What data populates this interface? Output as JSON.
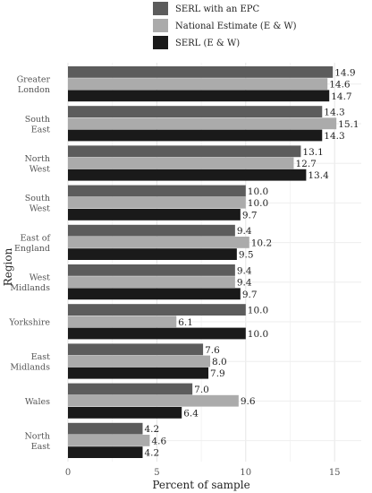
{
  "chart_data": {
    "type": "bar",
    "orientation": "horizontal",
    "xlabel": "Percent of sample",
    "ylabel": "Region",
    "xlim": [
      0,
      16.5
    ],
    "xticks": [
      0,
      5,
      10,
      15
    ],
    "grid": true,
    "legend_position": "top",
    "categories": [
      [
        "Greater",
        "London"
      ],
      [
        "South",
        "East"
      ],
      [
        "North",
        "West"
      ],
      [
        "South",
        "West"
      ],
      [
        "East of",
        "England"
      ],
      [
        "West",
        "Midlands"
      ],
      [
        "Yorkshire"
      ],
      [
        "East",
        "Midlands"
      ],
      [
        "Wales"
      ],
      [
        "North",
        "East"
      ]
    ],
    "series": [
      {
        "name": "SERL with an EPC",
        "color": "#5c5c5c",
        "values": [
          14.9,
          14.3,
          13.1,
          10.0,
          9.4,
          9.4,
          10.0,
          7.6,
          7.0,
          4.2
        ],
        "labels": [
          "14.9",
          "14.3",
          "13.1",
          "10.0",
          "9.4",
          "9.4",
          "10.0",
          "7.6",
          "7.0",
          "4.2"
        ]
      },
      {
        "name": "National Estimate (E & W)",
        "color": "#ababab",
        "values": [
          14.6,
          15.1,
          12.7,
          10.0,
          10.2,
          9.4,
          6.1,
          8.0,
          9.6,
          4.6
        ],
        "labels": [
          "14.6",
          "15.1",
          "12.7",
          "10.0",
          "10.2",
          "9.4",
          "6.1",
          "8.0",
          "9.6",
          "4.6"
        ]
      },
      {
        "name": "SERL (E & W)",
        "color": "#1a1a1a",
        "values": [
          14.7,
          14.3,
          13.4,
          9.7,
          9.5,
          9.7,
          10.0,
          7.9,
          6.4,
          4.2
        ],
        "labels": [
          "14.7",
          "14.3",
          "13.4",
          "9.7",
          "9.5",
          "9.7",
          "10.0",
          "7.9",
          "6.4",
          "4.2"
        ]
      }
    ]
  }
}
